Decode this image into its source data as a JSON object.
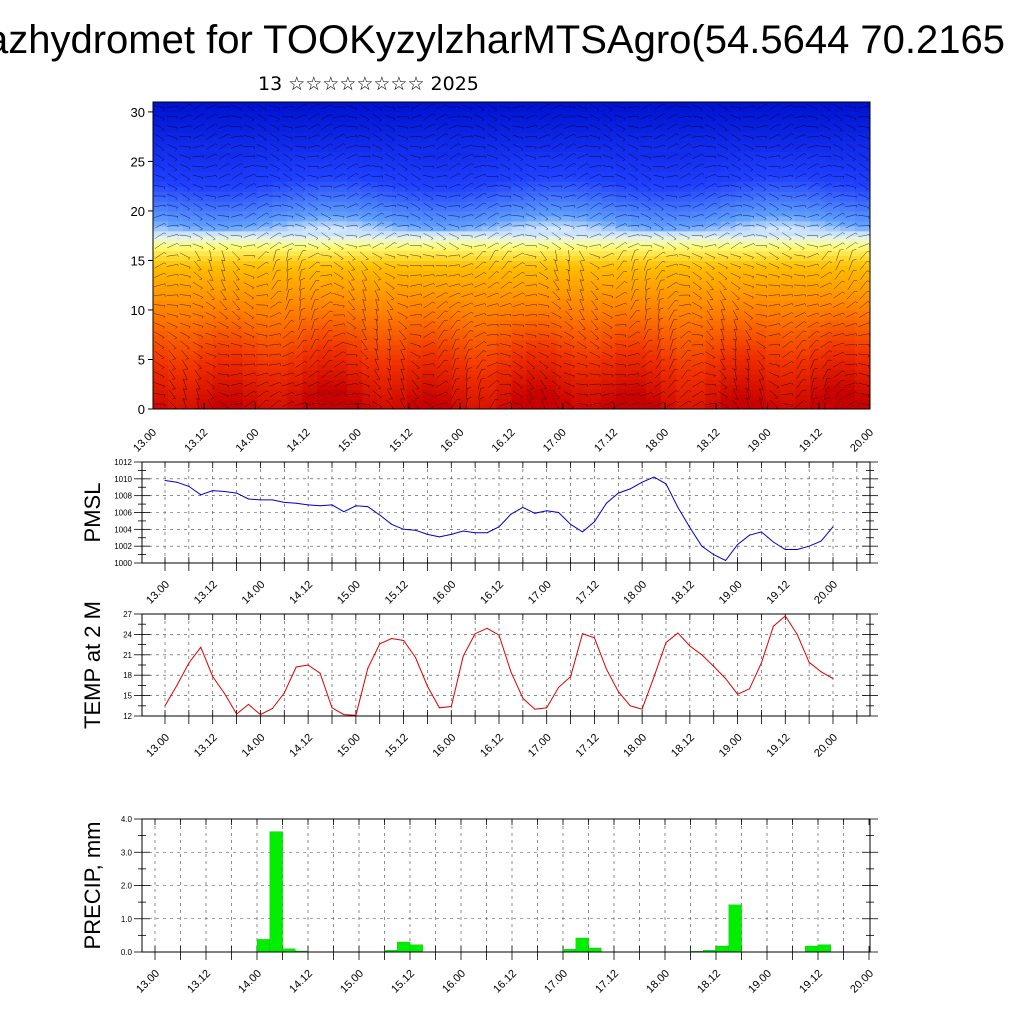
{
  "header": {
    "title": "azhydromet for TOOKyzylzharMTSAgro(54.5644 70.2165",
    "subtitle": "13 ☆☆☆☆☆☆☆☆ 2025"
  },
  "chart_data": [
    {
      "type": "heatmap",
      "name": "cross-section",
      "title": "",
      "xlabel": "",
      "ylabel": "",
      "x_ticks": [
        "13.00",
        "13.12",
        "14.00",
        "14.12",
        "15.00",
        "15.12",
        "16.00",
        "16.12",
        "17.00",
        "17.12",
        "18.00",
        "18.12",
        "19.00",
        "19.12",
        "20.00"
      ],
      "y_ticks": [
        0,
        5,
        10,
        15,
        20,
        25,
        30
      ],
      "xlim": [
        0,
        168
      ],
      "ylim": [
        0,
        31
      ],
      "colormap": [
        "#c80000",
        "#f03000",
        "#ff8000",
        "#ffc000",
        "#ffff80",
        "#e0f0ff",
        "#60a0ff",
        "#2040ff",
        "#0010d0"
      ],
      "colormap_breaks_level": [
        0,
        5,
        10,
        14.5,
        16.5,
        17.5,
        19,
        23,
        31
      ],
      "wind_barbs": true,
      "grid": false
    },
    {
      "type": "line",
      "name": "pmsl",
      "title": "",
      "ylabel": "PMSL",
      "color": "#0000cc",
      "ylim": [
        1000,
        1012
      ],
      "y_ticks": [
        1000,
        1002,
        1004,
        1006,
        1008,
        1010,
        1012
      ],
      "x_ticks": [
        "13.00",
        "13.12",
        "14.00",
        "14.12",
        "15.00",
        "15.12",
        "16.00",
        "16.12",
        "17.00",
        "17.12",
        "18.00",
        "18.12",
        "19.00",
        "19.12",
        "20.00"
      ],
      "xlim": [
        0,
        168
      ],
      "grid": true,
      "x": [
        0,
        3,
        6,
        9,
        12,
        15,
        18,
        21,
        24,
        27,
        30,
        33,
        36,
        39,
        42,
        45,
        48,
        51,
        54,
        57,
        60,
        63,
        66,
        69,
        72,
        75,
        78,
        81,
        84,
        87,
        90,
        93,
        96,
        99,
        102,
        105,
        108,
        111,
        114,
        117,
        120,
        123,
        126,
        129,
        132,
        135,
        138,
        141,
        144,
        147,
        150,
        153,
        156,
        159,
        162,
        165,
        168
      ],
      "values": [
        1009.8,
        1009.6,
        1009.1,
        1008.1,
        1008.6,
        1008.5,
        1008.3,
        1007.6,
        1007.5,
        1007.5,
        1007.2,
        1007.1,
        1006.9,
        1006.8,
        1006.9,
        1006.1,
        1006.8,
        1006.7,
        1005.7,
        1004.6,
        1004.0,
        1003.9,
        1003.4,
        1003.1,
        1003.4,
        1003.8,
        1003.6,
        1003.6,
        1004.3,
        1005.8,
        1006.6,
        1005.9,
        1006.2,
        1006.0,
        1004.6,
        1003.7,
        1004.9,
        1007.1,
        1008.3,
        1008.8,
        1009.6,
        1010.2,
        1009.4,
        1006.6,
        1004.2,
        1002.0,
        1001.0,
        1000.3,
        1002.2,
        1003.3,
        1003.7,
        1002.5,
        1001.6,
        1001.6,
        1002.0,
        1002.6,
        1004.3
      ]
    },
    {
      "type": "line",
      "name": "temp2m",
      "title": "",
      "ylabel": "TEMP at 2 M",
      "color": "#dd0000",
      "ylim": [
        12,
        27
      ],
      "y_ticks": [
        12,
        15,
        18,
        21,
        24,
        27
      ],
      "x_ticks": [
        "13.00",
        "13.12",
        "14.00",
        "14.12",
        "15.00",
        "15.12",
        "16.00",
        "16.12",
        "17.00",
        "17.12",
        "18.00",
        "18.12",
        "19.00",
        "19.12",
        "20.00"
      ],
      "xlim": [
        0,
        168
      ],
      "grid": true,
      "x": [
        0,
        3,
        6,
        9,
        12,
        15,
        18,
        21,
        24,
        27,
        30,
        33,
        36,
        39,
        42,
        45,
        48,
        51,
        54,
        57,
        60,
        63,
        66,
        69,
        72,
        75,
        78,
        81,
        84,
        87,
        90,
        93,
        96,
        99,
        102,
        105,
        108,
        111,
        114,
        117,
        120,
        123,
        126,
        129,
        132,
        135,
        138,
        141,
        144,
        147,
        150,
        153,
        156,
        159,
        162,
        165,
        168
      ],
      "values": [
        13.5,
        16.5,
        19.8,
        22.1,
        17.8,
        15.3,
        12.3,
        13.7,
        12.2,
        13.1,
        15.4,
        19.2,
        19.5,
        18.3,
        13.2,
        12.2,
        12.1,
        19.0,
        22.6,
        23.4,
        23.1,
        20.6,
        16.4,
        13.2,
        13.4,
        20.8,
        24.1,
        24.9,
        23.9,
        18.5,
        14.6,
        13.0,
        13.2,
        16.2,
        17.8,
        24.1,
        23.5,
        18.9,
        15.6,
        13.5,
        13.0,
        17.8,
        22.8,
        24.2,
        22.3,
        21.0,
        19.3,
        17.5,
        15.2,
        16.0,
        19.8,
        25.2,
        26.7,
        24.0,
        19.9,
        18.5,
        17.5
      ]
    },
    {
      "type": "bar",
      "name": "precip",
      "title": "",
      "ylabel": "PRECIP, mm",
      "color": "#00ee00",
      "ylim": [
        0,
        4
      ],
      "y_ticks": [
        "0.0",
        "1.0",
        "2.0",
        "3.0",
        "4.0"
      ],
      "x_ticks": [
        "13.00",
        "13.12",
        "14.00",
        "14.12",
        "15.00",
        "15.12",
        "16.00",
        "16.12",
        "17.00",
        "17.12",
        "18.00",
        "18.12",
        "19.00",
        "19.12",
        "20.00"
      ],
      "xlim": [
        0,
        168
      ],
      "grid": true,
      "x": [
        0,
        3,
        6,
        9,
        12,
        15,
        18,
        21,
        24,
        27,
        30,
        33,
        36,
        39,
        42,
        45,
        48,
        51,
        54,
        57,
        60,
        63,
        66,
        69,
        72,
        75,
        78,
        81,
        84,
        87,
        90,
        93,
        96,
        99,
        102,
        105,
        108,
        111,
        114,
        117,
        120,
        123,
        126,
        129,
        132,
        135,
        138,
        141,
        144,
        147,
        150,
        153,
        156
      ],
      "values": [
        0,
        0,
        0,
        0,
        0,
        0,
        0,
        0,
        0.38,
        3.62,
        0.1,
        0.03,
        0.01,
        0,
        0,
        0,
        0,
        0,
        0.05,
        0.3,
        0.22,
        0,
        0,
        0,
        0,
        0,
        0,
        0,
        0,
        0,
        0,
        0,
        0.08,
        0.42,
        0.12,
        0,
        0,
        0,
        0,
        0,
        0,
        0,
        0.02,
        0.05,
        0.18,
        1.42,
        0,
        0,
        0.01,
        0,
        0,
        0.18,
        0.22
      ]
    }
  ]
}
